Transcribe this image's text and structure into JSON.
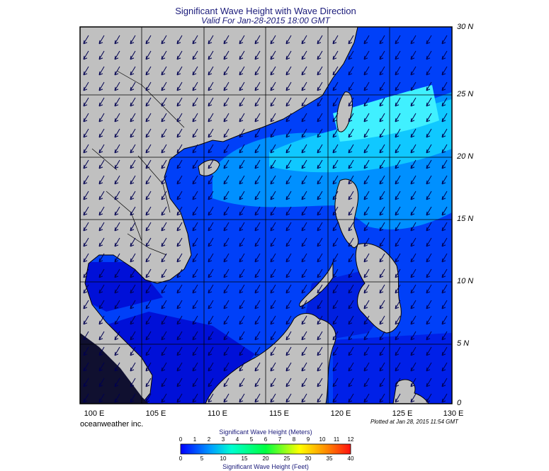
{
  "title": "Significant Wave Height with Wave Direction",
  "subtitle": "Valid For Jan-28-2015 18:00 GMT",
  "latitude_labels": [
    "30 N",
    "25 N",
    "20 N",
    "15 N",
    "10 N",
    "5 N",
    "0"
  ],
  "longitude_labels": [
    "100 E",
    "105 E",
    "110 E",
    "115 E",
    "120 E",
    "125 E",
    "130 E"
  ],
  "credit": "oceanweather inc.",
  "plotted": "Plotted at Jan 28, 2015 11:54 GMT",
  "colorbar": {
    "title_meters": "Significant Wave Height (Meters)",
    "title_feet": "Significant Wave Height (Feet)",
    "meters_ticks": [
      "0",
      "1",
      "2",
      "3",
      "4",
      "5",
      "6",
      "7",
      "8",
      "9",
      "10",
      "11",
      "12"
    ],
    "feet_ticks": [
      "0",
      "5",
      "10",
      "15",
      "20",
      "25",
      "30",
      "35",
      "40"
    ],
    "colors": [
      "#0000ff",
      "#0050ff",
      "#00a0ff",
      "#00e0ff",
      "#00ffc0",
      "#00ff60",
      "#30ff00",
      "#a0ff00",
      "#ffff00",
      "#ffc000",
      "#ff8000",
      "#ff2000"
    ]
  },
  "map": {
    "land_color": "#c0c0c0",
    "deep_land_color": "#101030",
    "ocean_low": "#0018e0",
    "ocean_mid": "#0060ff",
    "ocean_high": "#20e0ff",
    "arrow_color": "#000050",
    "wave_direction": "NE to SW"
  }
}
